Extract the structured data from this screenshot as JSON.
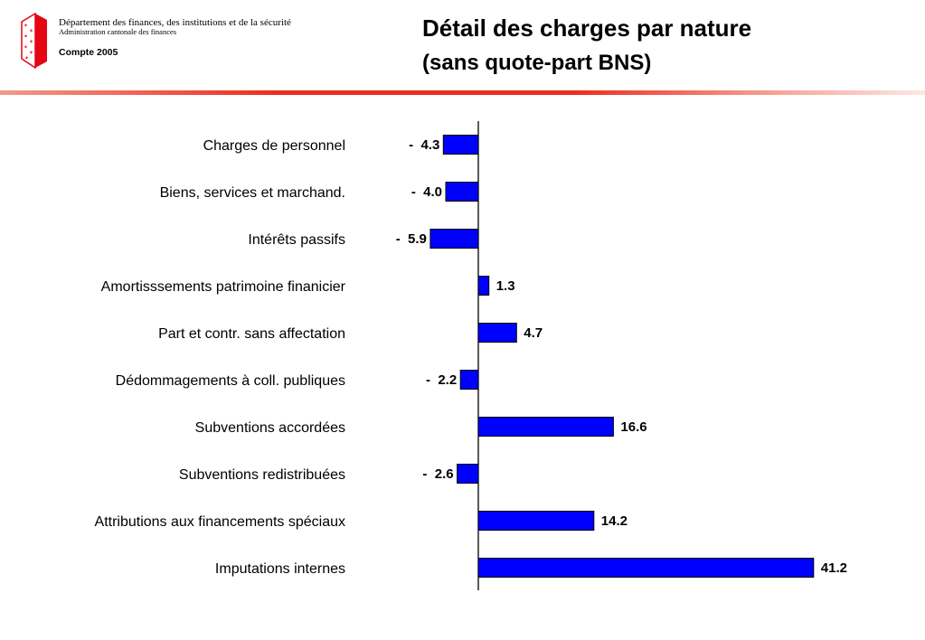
{
  "header": {
    "department": "Département des finances, des institutions et de la sécurité",
    "administration": "Administration cantonale des finances",
    "compte": "Compte 2005",
    "title": "Détail des charges par nature",
    "subtitle": "(sans quote-part BNS)"
  },
  "colors": {
    "bar": "#0000ff",
    "accent": "#e8312a",
    "logo": "#e30613"
  },
  "chart_data": {
    "type": "bar",
    "orientation": "horizontal",
    "categories": [
      "Charges de personnel",
      "Biens, services et marchand.",
      "Intérêts passifs",
      "Amortisssements patrimoine finanicier",
      "Part et contr. sans affectation",
      "Dédommagements à coll. publiques",
      "Subventions accordées",
      "Subventions redistribuées",
      "Attributions aux financements spéciaux",
      "Imputations internes"
    ],
    "values": [
      -4.3,
      -4.0,
      -5.9,
      1.3,
      4.7,
      -2.2,
      16.6,
      -2.6,
      14.2,
      41.2
    ],
    "value_labels": [
      "-  4.3",
      "-  4.0",
      "-  5.9",
      "1.3",
      "4.7",
      "-  2.2",
      "16.6",
      "-  2.6",
      "14.2",
      "41.2"
    ],
    "xlim": [
      -8,
      42
    ],
    "grid": false,
    "legend": "none"
  }
}
